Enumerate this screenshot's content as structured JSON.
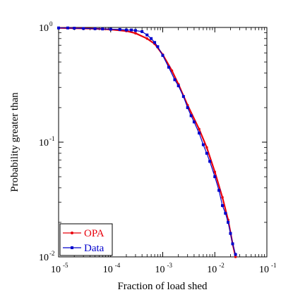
{
  "chart_data": {
    "type": "line",
    "xlabel": "Fraction of load shed",
    "ylabel": "Probability greater than",
    "xscale": "log",
    "yscale": "log",
    "xlim": [
      1e-05,
      0.1
    ],
    "ylim": [
      0.01,
      1
    ],
    "x_ticks": [
      {
        "base": "10",
        "exp": "-5"
      },
      {
        "base": "10",
        "exp": "-4"
      },
      {
        "base": "10",
        "exp": "-3"
      },
      {
        "base": "10",
        "exp": "-2"
      },
      {
        "base": "10",
        "exp": "-1"
      }
    ],
    "y_ticks": [
      {
        "base": "10",
        "exp": "-2"
      },
      {
        "base": "10",
        "exp": "-1"
      },
      {
        "base": "10",
        "exp": "0"
      }
    ],
    "grid": false,
    "legend_position": "bottom-left",
    "series": [
      {
        "name": "OPA",
        "color": "#e8000b",
        "marker": "dot",
        "x": [
          1e-05,
          2e-05,
          5e-05,
          0.0001,
          0.0002,
          0.0003,
          0.0005,
          0.0007,
          0.001,
          0.0015,
          0.002,
          0.003,
          0.005,
          0.007,
          0.01,
          0.014,
          0.018,
          0.022,
          0.025
        ],
        "y": [
          0.99,
          0.985,
          0.975,
          0.96,
          0.93,
          0.89,
          0.8,
          0.72,
          0.58,
          0.42,
          0.32,
          0.21,
          0.13,
          0.09,
          0.055,
          0.033,
          0.021,
          0.013,
          0.01
        ]
      },
      {
        "name": "Data",
        "color": "#0000cc",
        "marker": "square",
        "x": [
          1e-05,
          1.5e-05,
          2e-05,
          3e-05,
          5e-05,
          7e-05,
          0.0001,
          0.00015,
          0.0002,
          0.00025,
          0.0003,
          0.0004,
          0.0005,
          0.0006,
          0.0007,
          0.0008,
          0.001,
          0.0013,
          0.0017,
          0.002,
          0.0025,
          0.003,
          0.0035,
          0.004,
          0.005,
          0.006,
          0.007,
          0.008,
          0.01,
          0.012,
          0.014,
          0.016,
          0.018,
          0.02,
          0.022,
          0.025
        ],
        "y": [
          0.99,
          0.99,
          0.985,
          0.98,
          0.975,
          0.97,
          0.965,
          0.96,
          0.95,
          0.95,
          0.94,
          0.92,
          0.86,
          0.8,
          0.74,
          0.68,
          0.57,
          0.45,
          0.35,
          0.31,
          0.25,
          0.2,
          0.17,
          0.15,
          0.12,
          0.095,
          0.08,
          0.068,
          0.05,
          0.038,
          0.028,
          0.024,
          0.02,
          0.016,
          0.013,
          0.0105
        ]
      }
    ]
  }
}
